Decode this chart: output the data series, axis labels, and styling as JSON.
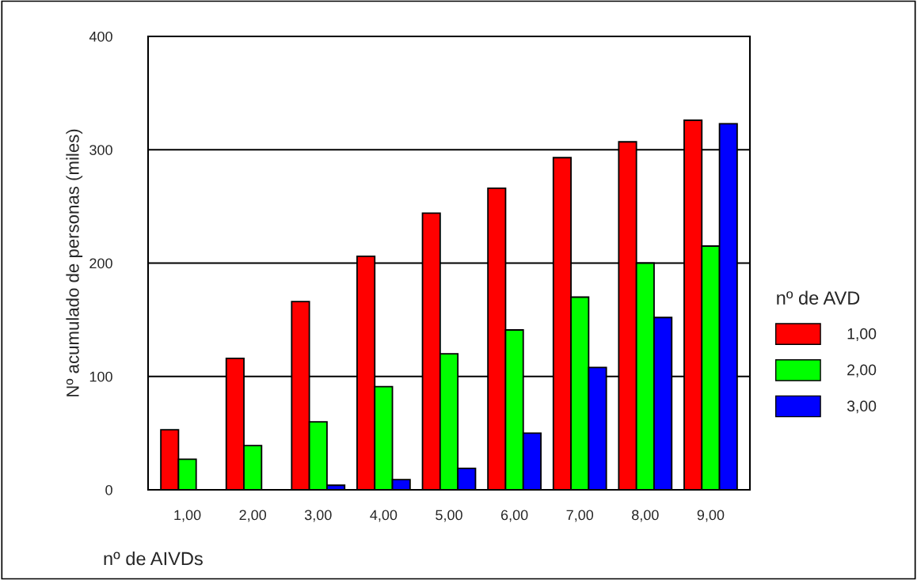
{
  "chart_data": {
    "type": "bar",
    "xlabel": "nº de AIVDs",
    "ylabel": "Nº acumulado de personas (miles)",
    "legend_title": "nº de AVD",
    "categories": [
      "1,00",
      "2,00",
      "3,00",
      "4,00",
      "5,00",
      "6,00",
      "7,00",
      "8,00",
      "9,00"
    ],
    "series": [
      {
        "name": "1,00",
        "color": "#ff0000",
        "values": [
          53,
          116,
          166,
          206,
          244,
          266,
          293,
          307,
          326
        ]
      },
      {
        "name": "2,00",
        "color": "#00ff00",
        "values": [
          27,
          39,
          60,
          91,
          120,
          141,
          170,
          200,
          215
        ]
      },
      {
        "name": "3,00",
        "color": "#0000ff",
        "values": [
          null,
          null,
          4,
          9,
          19,
          50,
          108,
          152,
          323
        ]
      }
    ],
    "ylim": [
      0,
      400
    ],
    "yticks": [
      0,
      100,
      200,
      300,
      400
    ],
    "grid": "y",
    "legend": "right"
  }
}
